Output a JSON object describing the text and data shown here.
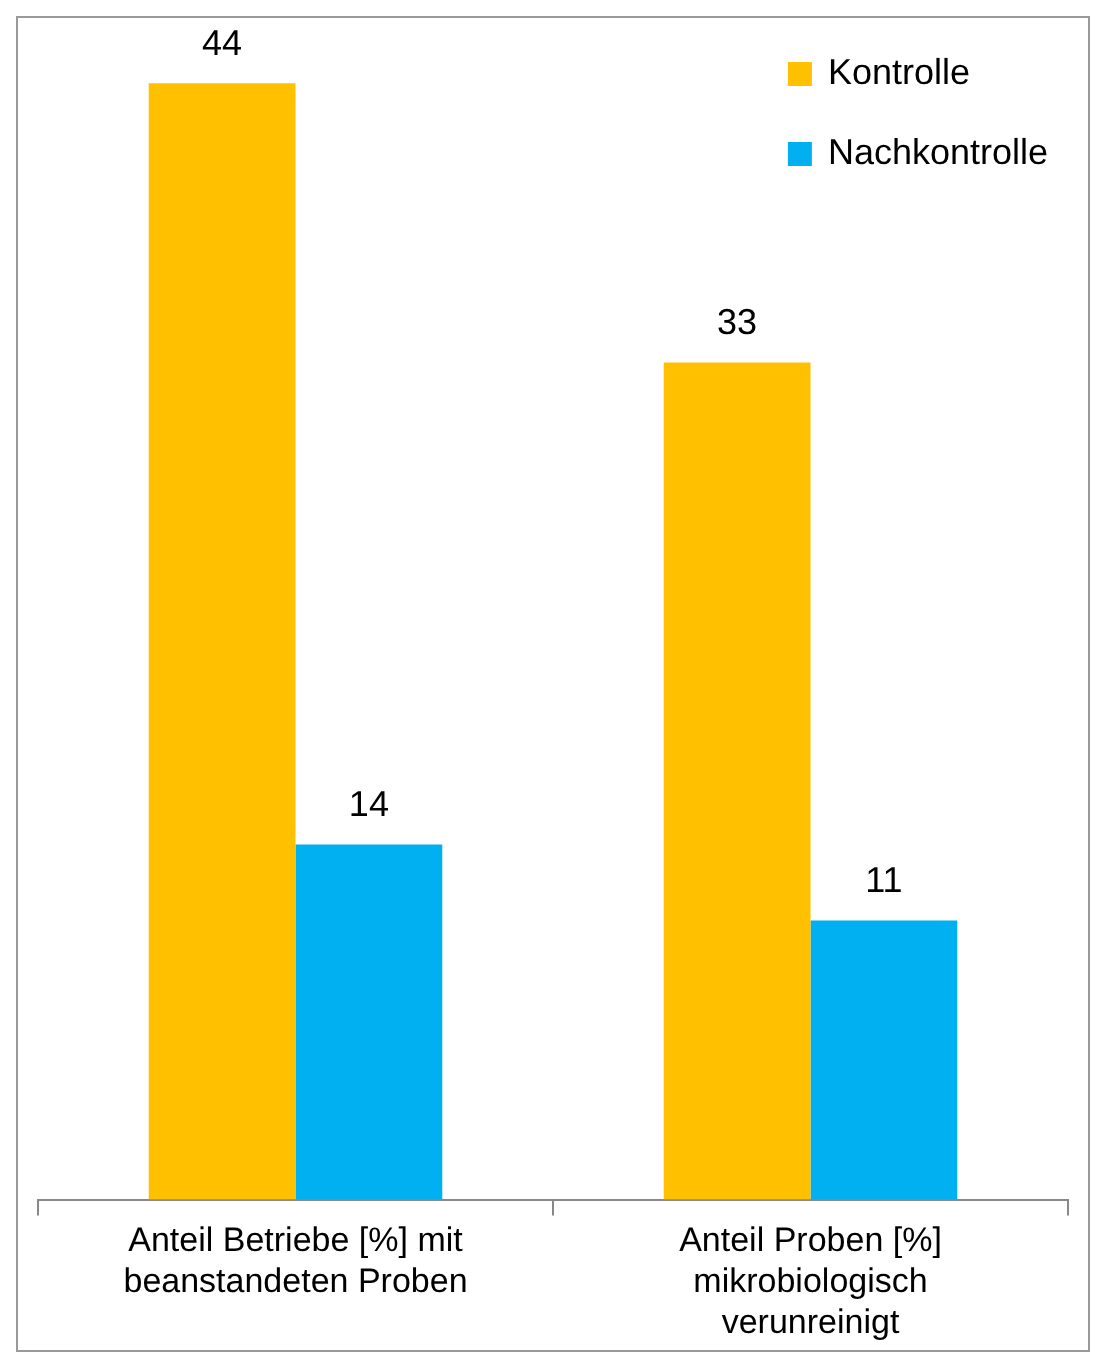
{
  "chart_data": {
    "type": "bar",
    "categories": [
      "Anteil Betriebe [%] mit beanstandeten Proben",
      "Anteil Proben [%] mikrobiologisch verunreinigt"
    ],
    "series": [
      {
        "name": "Kontrolle",
        "color": "#ffc000",
        "values": [
          44,
          33
        ]
      },
      {
        "name": "Nachkontrolle",
        "color": "#00b0f0",
        "values": [
          14,
          11
        ]
      }
    ],
    "data_labels": true,
    "legend": "top right",
    "grid": false,
    "tick_labels": "x"
  }
}
